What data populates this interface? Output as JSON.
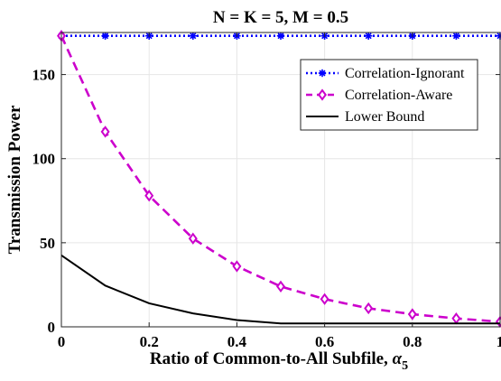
{
  "chart_data": {
    "type": "line",
    "title": "N = K = 5, M = 0.5",
    "xlabel": "Ratio of Common-to-All Subfile,",
    "xlabel_symbol": "α",
    "xlabel_subscript": "5",
    "ylabel": "Transmission Power",
    "xlim": [
      0,
      1
    ],
    "ylim": [
      0,
      175
    ],
    "x_ticks": [
      "0",
      "0.2",
      "0.4",
      "0.6",
      "0.8",
      "1"
    ],
    "y_ticks": [
      "0",
      "50",
      "100",
      "150"
    ],
    "grid": true,
    "legend_position": "top-right",
    "x": [
      0,
      0.1,
      0.2,
      0.3,
      0.4,
      0.5,
      0.6,
      0.7,
      0.8,
      0.9,
      1.0
    ],
    "series": [
      {
        "name": "Correlation-Ignorant",
        "color": "#0000ff",
        "line_style": "dotted",
        "marker": "asterisk",
        "values": [
          173,
          173,
          173,
          173,
          173,
          173,
          173,
          173,
          173,
          173,
          173
        ]
      },
      {
        "name": "Correlation-Aware",
        "color": "#cc00cc",
        "line_style": "dashed",
        "marker": "diamond",
        "values": [
          173,
          116,
          78,
          52.5,
          36,
          24,
          16.5,
          11,
          7.5,
          5,
          3
        ]
      },
      {
        "name": "Lower Bound",
        "color": "#000000",
        "line_style": "solid",
        "marker": "none",
        "values": [
          42.5,
          24.5,
          14,
          8,
          4,
          2,
          2,
          2,
          2,
          2,
          2
        ]
      }
    ]
  }
}
